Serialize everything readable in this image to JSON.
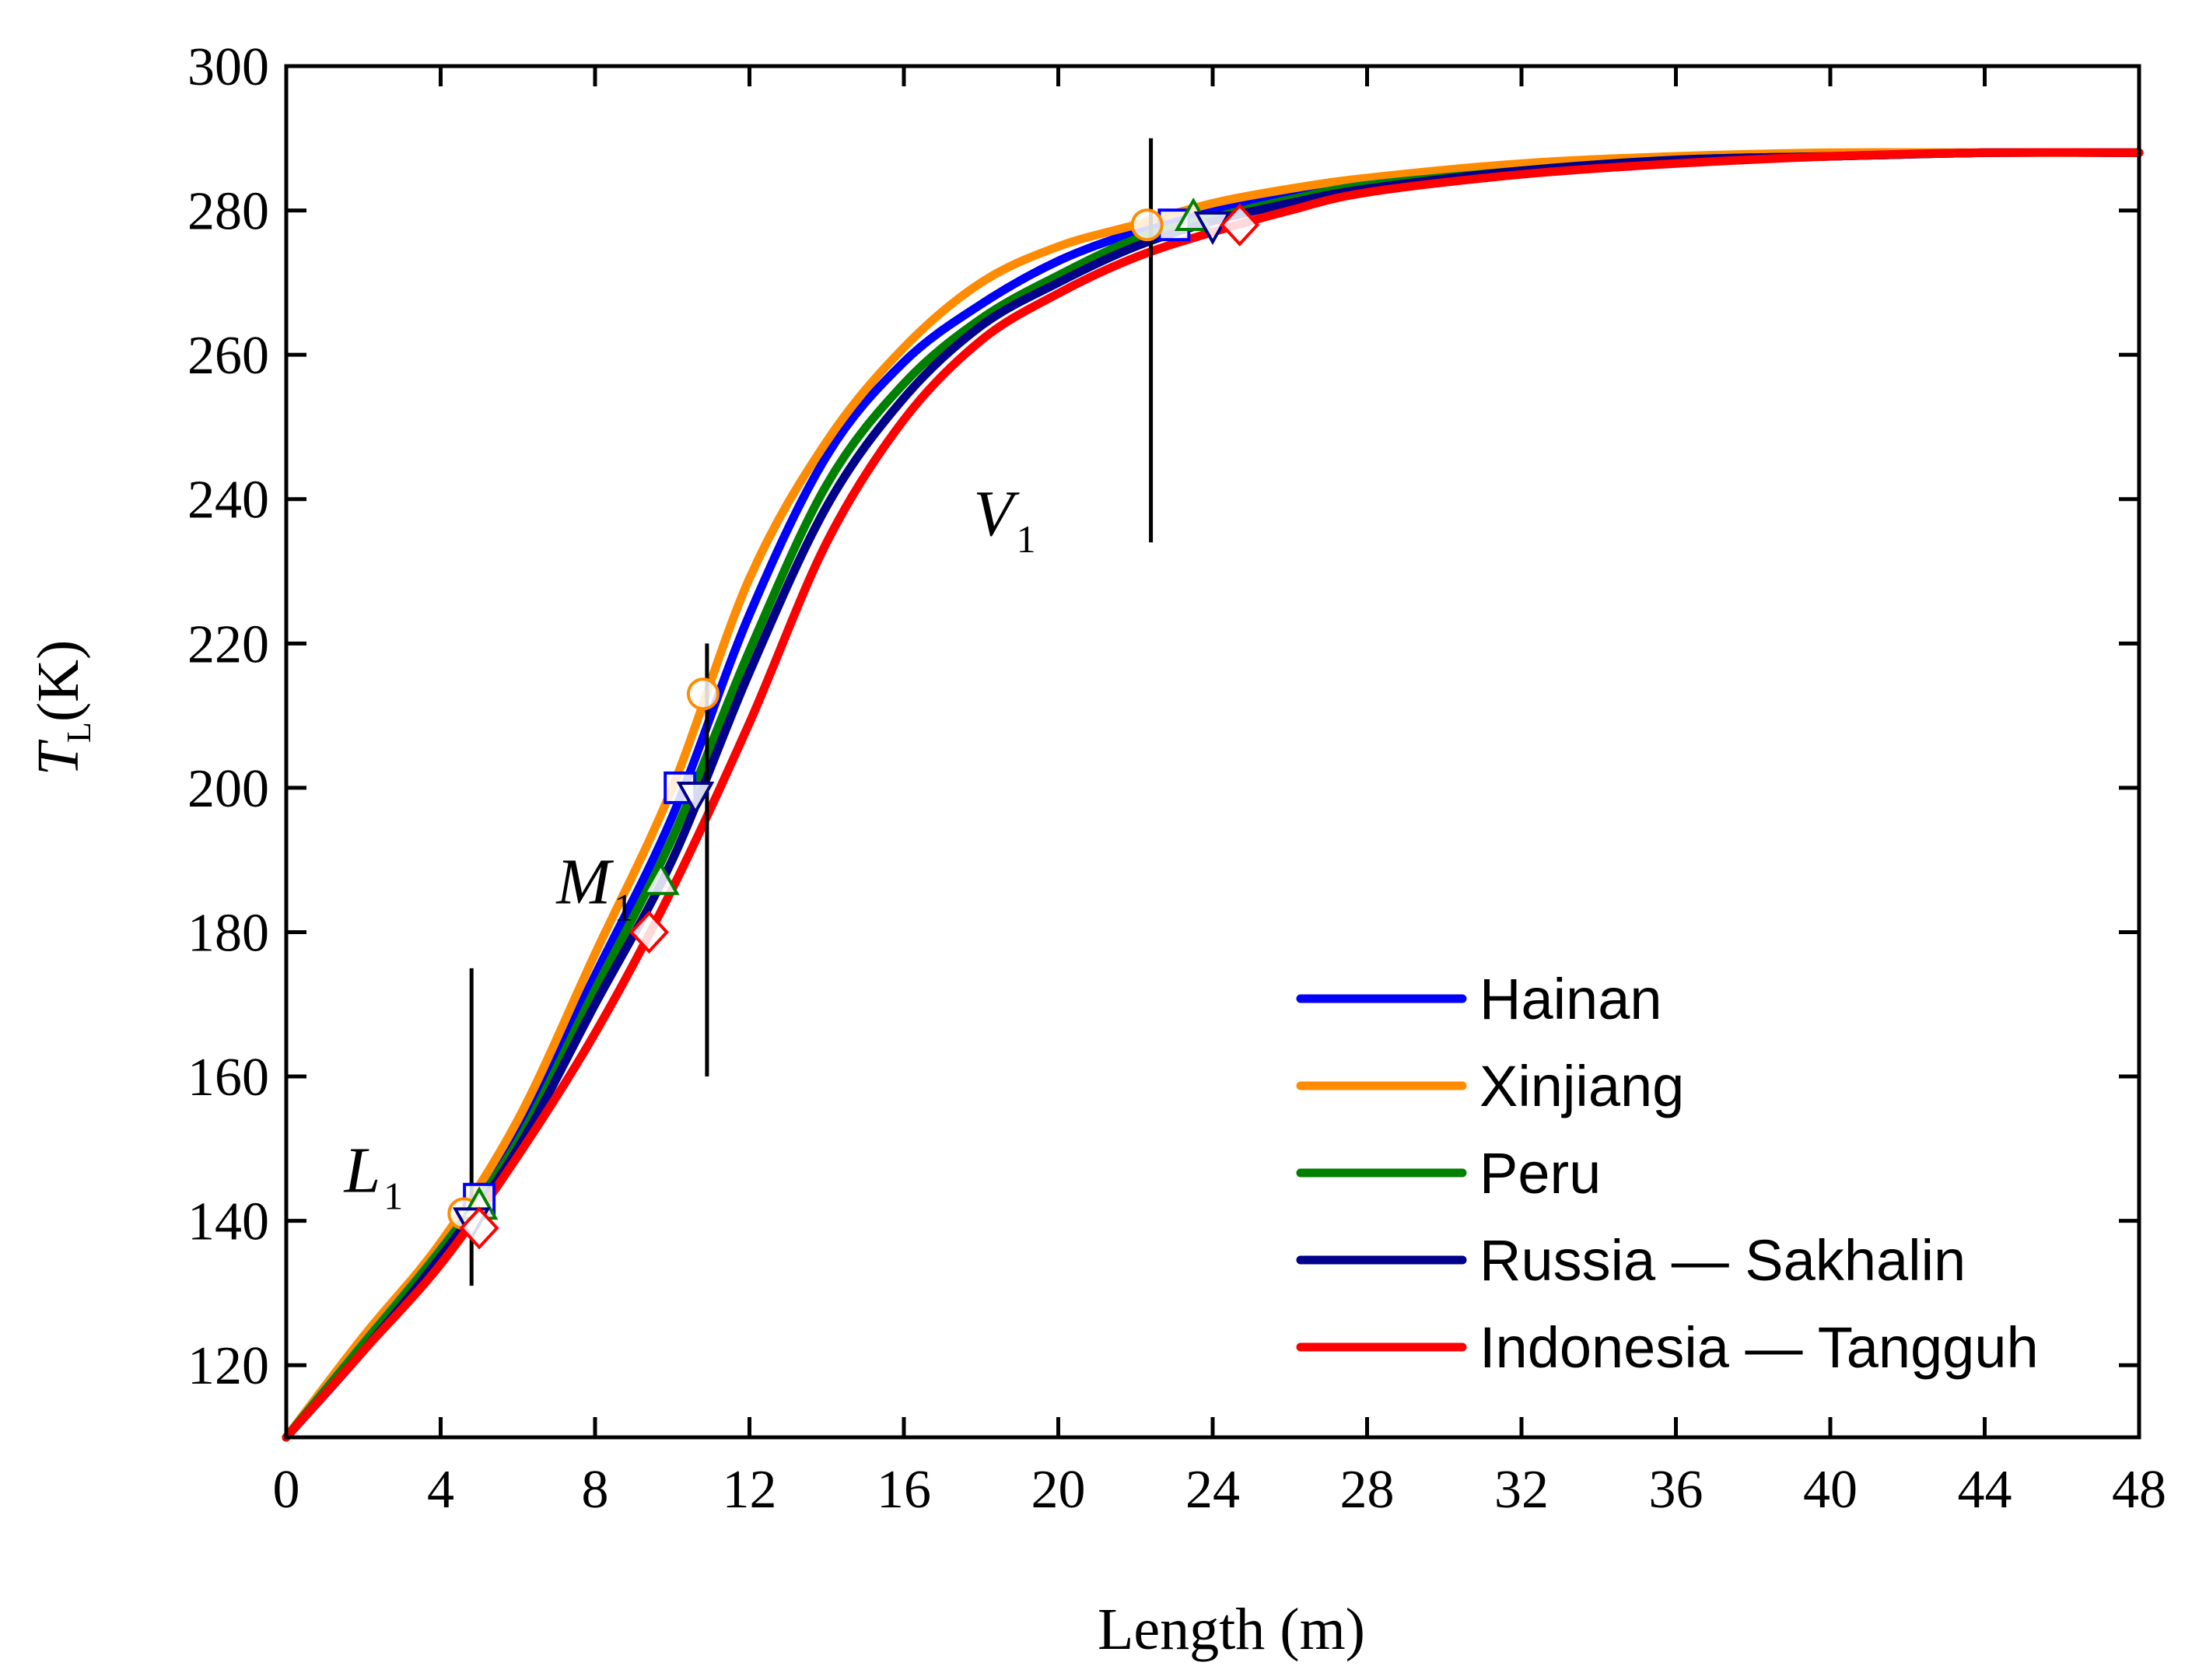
{
  "chart_data": {
    "type": "line",
    "title": "",
    "xlabel": "Length (m)",
    "ylabel_main": "T",
    "ylabel_sub": "L",
    "ylabel_unit": "(K)",
    "xlim": [
      0,
      48
    ],
    "ylim": [
      110,
      300
    ],
    "x_ticks": [
      0,
      4,
      8,
      12,
      16,
      20,
      24,
      28,
      32,
      36,
      40,
      44,
      48
    ],
    "y_ticks": [
      120,
      140,
      160,
      180,
      200,
      220,
      240,
      260,
      280,
      300
    ],
    "legend_position": "bottom-right",
    "series": [
      {
        "name": "Hainan",
        "color": "#0000ff",
        "marker": "square",
        "x": [
          0,
          2,
          4,
          6,
          8,
          10,
          12,
          14,
          16,
          18,
          20,
          22,
          24,
          26,
          28,
          32,
          36,
          40,
          44,
          48
        ],
        "y": [
          110,
          123,
          136,
          152,
          174,
          196,
          224,
          246,
          259,
          267,
          273,
          277,
          280,
          282,
          284,
          286,
          287,
          287.5,
          288,
          288
        ],
        "points": [
          {
            "x": 5.0,
            "y": 143
          },
          {
            "x": 10.2,
            "y": 200
          },
          {
            "x": 23.0,
            "y": 278
          }
        ]
      },
      {
        "name": "Xinjiang",
        "color": "#ff8c00",
        "marker": "circle",
        "x": [
          0,
          2,
          4,
          6,
          8,
          10,
          12,
          14,
          16,
          18,
          20,
          22,
          24,
          26,
          28,
          32,
          36,
          40,
          44,
          48
        ],
        "y": [
          110,
          124,
          137,
          154,
          177,
          200,
          229,
          248,
          261,
          270,
          275,
          278,
          281,
          283,
          284.5,
          286.5,
          287.5,
          288,
          288,
          288
        ],
        "points": [
          {
            "x": 4.6,
            "y": 141
          },
          {
            "x": 10.8,
            "y": 213
          },
          {
            "x": 22.3,
            "y": 278
          }
        ]
      },
      {
        "name": "Peru",
        "color": "#008000",
        "marker": "triangle-up",
        "x": [
          0,
          2,
          4,
          6,
          8,
          10,
          12,
          14,
          16,
          18,
          20,
          22,
          24,
          26,
          28,
          32,
          36,
          40,
          44,
          48
        ],
        "y": [
          110,
          123,
          136,
          151,
          172,
          193,
          219,
          242,
          256,
          265,
          271,
          276,
          279,
          281.5,
          283.5,
          285.5,
          287,
          287.5,
          288,
          288
        ],
        "points": [
          {
            "x": 5.0,
            "y": 142
          },
          {
            "x": 9.7,
            "y": 187
          },
          {
            "x": 23.5,
            "y": 279
          }
        ]
      },
      {
        "name": "Russia — Sakhalin",
        "color": "#00008b",
        "marker": "triangle-down",
        "x": [
          0,
          2,
          4,
          6,
          8,
          10,
          12,
          14,
          16,
          18,
          20,
          22,
          24,
          26,
          28,
          32,
          36,
          40,
          44,
          48
        ],
        "y": [
          110,
          122,
          135,
          150,
          170,
          190,
          216,
          239,
          254,
          264,
          270,
          275,
          278.5,
          281,
          283,
          285.5,
          287,
          287.5,
          288,
          288
        ],
        "points": [
          {
            "x": 4.8,
            "y": 140
          },
          {
            "x": 10.6,
            "y": 199
          },
          {
            "x": 24.0,
            "y": 278
          }
        ]
      },
      {
        "name": "Indonesia — Tangguh",
        "color": "#ff0000",
        "marker": "diamond",
        "x": [
          0,
          2,
          4,
          6,
          8,
          10,
          12,
          14,
          16,
          18,
          20,
          22,
          24,
          26,
          28,
          32,
          36,
          40,
          44,
          48
        ],
        "y": [
          110,
          122,
          134,
          149,
          166,
          186,
          209,
          234,
          251,
          262,
          268.5,
          273.5,
          277,
          280,
          282.5,
          285,
          286.5,
          287.5,
          288,
          288
        ],
        "points": [
          {
            "x": 5.0,
            "y": 139
          },
          {
            "x": 9.4,
            "y": 180
          },
          {
            "x": 24.7,
            "y": 278
          }
        ]
      }
    ],
    "reference_lines": [
      {
        "x": 4.8,
        "y_from": 131,
        "y_to": 175
      },
      {
        "x": 10.9,
        "y_from": 160,
        "y_to": 220
      },
      {
        "x": 22.4,
        "y_from": 234,
        "y_to": 290
      }
    ],
    "annotations": [
      {
        "main": "L",
        "sub": "1",
        "x": 1.5,
        "y": 144
      },
      {
        "main": "M",
        "sub": "1",
        "x": 7.0,
        "y": 184
      },
      {
        "main": "V",
        "sub": "1",
        "x": 17.8,
        "y": 235
      }
    ]
  }
}
